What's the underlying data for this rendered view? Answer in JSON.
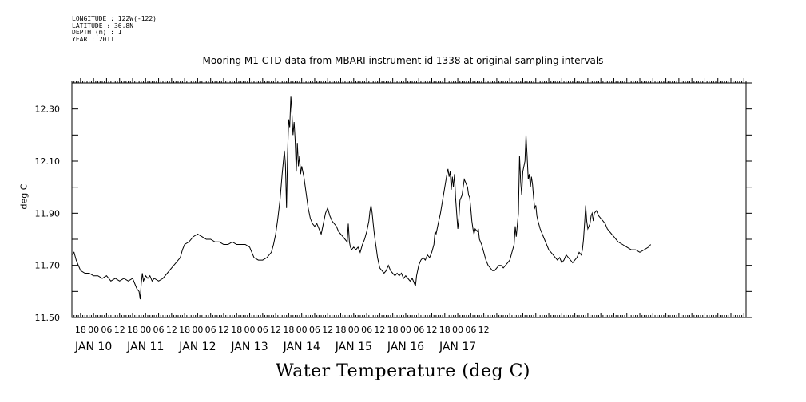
{
  "header": {
    "meta_lines": [
      "LONGITUDE : 122W(-122)",
      "LATITUDE : 36.8N",
      "DEPTH (m) : 1",
      "YEAR : 2011"
    ]
  },
  "chart_data": {
    "type": "line",
    "title": "Mooring M1 CTD data from MBARI instrument id 1338 at original sampling intervals",
    "xlabel": "Water Temperature (deg C)",
    "ylabel": "deg C",
    "ylim": [
      11.5,
      12.4
    ],
    "y_ticks": [
      "11.50",
      "11.70",
      "11.90",
      "12.10",
      "12.30"
    ],
    "x_range_hours": [
      -10,
      301
    ],
    "x_hour_ticks": [
      "18",
      "00",
      "06",
      "12",
      "18",
      "00",
      "06",
      "12",
      "18",
      "00",
      "06",
      "12",
      "18",
      "00",
      "06",
      "12",
      "18",
      "00",
      "06",
      "12",
      "18",
      "00",
      "06",
      "12",
      "18",
      "00",
      "06",
      "12",
      "18",
      "00",
      "06",
      "12"
    ],
    "x_day_labels": [
      "JAN 10",
      "JAN 11",
      "JAN 12",
      "JAN 13",
      "JAN 14",
      "JAN 15",
      "JAN 16",
      "JAN 17"
    ],
    "grid": false,
    "series": [
      {
        "color": "#000000",
        "points": [
          [
            -10,
            11.74
          ],
          [
            -9,
            11.75
          ],
          [
            -8,
            11.72
          ],
          [
            -7,
            11.7
          ],
          [
            -6,
            11.68
          ],
          [
            -4,
            11.67
          ],
          [
            -2,
            11.67
          ],
          [
            0,
            11.66
          ],
          [
            2,
            11.66
          ],
          [
            4,
            11.65
          ],
          [
            6,
            11.66
          ],
          [
            8,
            11.64
          ],
          [
            10,
            11.65
          ],
          [
            12,
            11.64
          ],
          [
            14,
            11.65
          ],
          [
            16,
            11.64
          ],
          [
            18,
            11.65
          ],
          [
            19,
            11.63
          ],
          [
            20,
            11.61
          ],
          [
            21,
            11.6
          ],
          [
            21.5,
            11.57
          ],
          [
            22,
            11.63
          ],
          [
            22.5,
            11.67
          ],
          [
            23,
            11.64
          ],
          [
            24,
            11.66
          ],
          [
            25,
            11.65
          ],
          [
            26,
            11.66
          ],
          [
            27,
            11.64
          ],
          [
            28,
            11.65
          ],
          [
            30,
            11.64
          ],
          [
            32,
            11.65
          ],
          [
            34,
            11.67
          ],
          [
            36,
            11.69
          ],
          [
            38,
            11.71
          ],
          [
            40,
            11.73
          ],
          [
            41,
            11.76
          ],
          [
            42,
            11.78
          ],
          [
            44,
            11.79
          ],
          [
            46,
            11.81
          ],
          [
            48,
            11.82
          ],
          [
            50,
            11.81
          ],
          [
            52,
            11.8
          ],
          [
            54,
            11.8
          ],
          [
            56,
            11.79
          ],
          [
            58,
            11.79
          ],
          [
            60,
            11.78
          ],
          [
            62,
            11.78
          ],
          [
            64,
            11.79
          ],
          [
            66,
            11.78
          ],
          [
            68,
            11.78
          ],
          [
            70,
            11.78
          ],
          [
            72,
            11.77
          ],
          [
            73,
            11.75
          ],
          [
            74,
            11.73
          ],
          [
            76,
            11.72
          ],
          [
            78,
            11.72
          ],
          [
            80,
            11.73
          ],
          [
            82,
            11.75
          ],
          [
            83,
            11.78
          ],
          [
            84,
            11.82
          ],
          [
            85,
            11.88
          ],
          [
            86,
            11.95
          ],
          [
            87,
            12.05
          ],
          [
            88,
            12.14
          ],
          [
            88.5,
            12.09
          ],
          [
            89,
            11.92
          ],
          [
            89.5,
            12.13
          ],
          [
            90,
            12.26
          ],
          [
            90.5,
            12.23
          ],
          [
            91,
            12.35
          ],
          [
            91.5,
            12.28
          ],
          [
            92,
            12.2
          ],
          [
            92.5,
            12.25
          ],
          [
            93,
            12.18
          ],
          [
            93.5,
            12.06
          ],
          [
            94,
            12.17
          ],
          [
            94.5,
            12.08
          ],
          [
            95,
            12.12
          ],
          [
            95.5,
            12.05
          ],
          [
            96,
            12.08
          ],
          [
            97,
            12.04
          ],
          [
            98,
            11.98
          ],
          [
            99,
            11.92
          ],
          [
            100,
            11.88
          ],
          [
            101,
            11.86
          ],
          [
            102,
            11.85
          ],
          [
            103,
            11.86
          ],
          [
            104,
            11.84
          ],
          [
            105,
            11.82
          ],
          [
            106,
            11.86
          ],
          [
            107,
            11.9
          ],
          [
            108,
            11.92
          ],
          [
            109,
            11.89
          ],
          [
            110,
            11.87
          ],
          [
            111,
            11.86
          ],
          [
            112,
            11.85
          ],
          [
            113,
            11.83
          ],
          [
            114,
            11.82
          ],
          [
            115,
            11.81
          ],
          [
            116,
            11.8
          ],
          [
            117,
            11.79
          ],
          [
            117.5,
            11.86
          ],
          [
            118,
            11.79
          ],
          [
            118.5,
            11.77
          ],
          [
            119,
            11.76
          ],
          [
            120,
            11.77
          ],
          [
            121,
            11.76
          ],
          [
            122,
            11.77
          ],
          [
            123,
            11.75
          ],
          [
            124,
            11.78
          ],
          [
            125,
            11.8
          ],
          [
            126,
            11.83
          ],
          [
            127,
            11.87
          ],
          [
            127.5,
            11.91
          ],
          [
            128,
            11.93
          ],
          [
            128.5,
            11.9
          ],
          [
            129,
            11.86
          ],
          [
            129.5,
            11.82
          ],
          [
            130,
            11.79
          ],
          [
            130.5,
            11.76
          ],
          [
            131,
            11.73
          ],
          [
            131.5,
            11.71
          ],
          [
            132,
            11.69
          ],
          [
            133,
            11.68
          ],
          [
            134,
            11.67
          ],
          [
            135,
            11.68
          ],
          [
            136,
            11.7
          ],
          [
            137,
            11.68
          ],
          [
            138,
            11.67
          ],
          [
            139,
            11.66
          ],
          [
            140,
            11.67
          ],
          [
            141,
            11.66
          ],
          [
            142,
            11.67
          ],
          [
            143,
            11.65
          ],
          [
            144,
            11.66
          ],
          [
            145,
            11.65
          ],
          [
            146,
            11.64
          ],
          [
            147,
            11.65
          ],
          [
            148,
            11.63
          ],
          [
            148.5,
            11.62
          ],
          [
            149,
            11.66
          ],
          [
            150,
            11.7
          ],
          [
            151,
            11.72
          ],
          [
            152,
            11.73
          ],
          [
            153,
            11.72
          ],
          [
            154,
            11.74
          ],
          [
            155,
            11.73
          ],
          [
            156,
            11.75
          ],
          [
            157,
            11.78
          ],
          [
            157.5,
            11.83
          ],
          [
            158,
            11.82
          ],
          [
            159,
            11.86
          ],
          [
            160,
            11.9
          ],
          [
            161,
            11.95
          ],
          [
            162,
            12.0
          ],
          [
            163,
            12.05
          ],
          [
            163.5,
            12.07
          ],
          [
            164,
            12.04
          ],
          [
            164.5,
            12.06
          ],
          [
            165,
            11.99
          ],
          [
            165.5,
            12.04
          ],
          [
            166,
            12.0
          ],
          [
            166.5,
            12.05
          ],
          [
            167,
            11.96
          ],
          [
            167.5,
            11.9
          ],
          [
            168,
            11.84
          ],
          [
            168.5,
            11.88
          ],
          [
            169,
            11.95
          ],
          [
            170,
            11.97
          ],
          [
            170.5,
            12.0
          ],
          [
            171,
            12.03
          ],
          [
            171.5,
            12.02
          ],
          [
            172,
            12.01
          ],
          [
            172.5,
            12.0
          ],
          [
            173,
            11.97
          ],
          [
            173.5,
            11.96
          ],
          [
            174,
            11.92
          ],
          [
            174.5,
            11.87
          ],
          [
            175,
            11.84
          ],
          [
            175.5,
            11.82
          ],
          [
            176,
            11.84
          ],
          [
            177,
            11.83
          ],
          [
            177.5,
            11.84
          ],
          [
            178,
            11.8
          ],
          [
            179,
            11.78
          ],
          [
            180,
            11.75
          ],
          [
            181,
            11.72
          ],
          [
            182,
            11.7
          ],
          [
            183,
            11.69
          ],
          [
            184,
            11.68
          ],
          [
            185,
            11.68
          ],
          [
            186,
            11.69
          ],
          [
            187,
            11.7
          ],
          [
            188,
            11.7
          ],
          [
            189,
            11.69
          ],
          [
            190,
            11.7
          ],
          [
            191,
            11.71
          ],
          [
            192,
            11.72
          ],
          [
            193,
            11.75
          ],
          [
            194,
            11.78
          ],
          [
            194.5,
            11.85
          ],
          [
            195,
            11.81
          ],
          [
            196,
            11.9
          ],
          [
            196.5,
            12.12
          ],
          [
            197,
            12.02
          ],
          [
            197.5,
            11.97
          ],
          [
            198,
            12.06
          ],
          [
            199,
            12.1
          ],
          [
            199.5,
            12.2
          ],
          [
            200,
            12.12
          ],
          [
            200.5,
            12.03
          ],
          [
            201,
            12.05
          ],
          [
            201.5,
            12.0
          ],
          [
            202,
            12.04
          ],
          [
            202.5,
            12.01
          ],
          [
            203,
            11.96
          ],
          [
            203.5,
            11.92
          ],
          [
            204,
            11.93
          ],
          [
            204.5,
            11.89
          ],
          [
            205,
            11.87
          ],
          [
            206,
            11.84
          ],
          [
            207,
            11.82
          ],
          [
            208,
            11.8
          ],
          [
            209,
            11.78
          ],
          [
            210,
            11.76
          ],
          [
            211,
            11.75
          ],
          [
            212,
            11.74
          ],
          [
            213,
            11.73
          ],
          [
            214,
            11.72
          ],
          [
            215,
            11.73
          ],
          [
            216,
            11.71
          ],
          [
            217,
            11.72
          ],
          [
            218,
            11.74
          ],
          [
            219,
            11.73
          ],
          [
            220,
            11.72
          ],
          [
            221,
            11.71
          ],
          [
            222,
            11.72
          ],
          [
            223,
            11.73
          ],
          [
            224,
            11.75
          ],
          [
            225,
            11.74
          ],
          [
            225.5,
            11.76
          ],
          [
            226,
            11.8
          ],
          [
            226.5,
            11.86
          ],
          [
            227,
            11.93
          ],
          [
            227.5,
            11.87
          ],
          [
            228,
            11.84
          ],
          [
            229,
            11.86
          ],
          [
            229.5,
            11.89
          ],
          [
            230,
            11.9
          ],
          [
            230.5,
            11.87
          ],
          [
            231,
            11.9
          ],
          [
            232,
            11.91
          ],
          [
            233,
            11.89
          ],
          [
            234,
            11.88
          ],
          [
            235,
            11.87
          ],
          [
            236,
            11.86
          ],
          [
            237,
            11.84
          ],
          [
            238,
            11.83
          ],
          [
            239,
            11.82
          ],
          [
            240,
            11.81
          ],
          [
            241,
            11.8
          ],
          [
            242,
            11.79
          ],
          [
            244,
            11.78
          ],
          [
            246,
            11.77
          ],
          [
            248,
            11.76
          ],
          [
            250,
            11.76
          ],
          [
            252,
            11.75
          ],
          [
            254,
            11.76
          ],
          [
            256,
            11.77
          ],
          [
            257,
            11.78
          ]
        ]
      }
    ]
  }
}
